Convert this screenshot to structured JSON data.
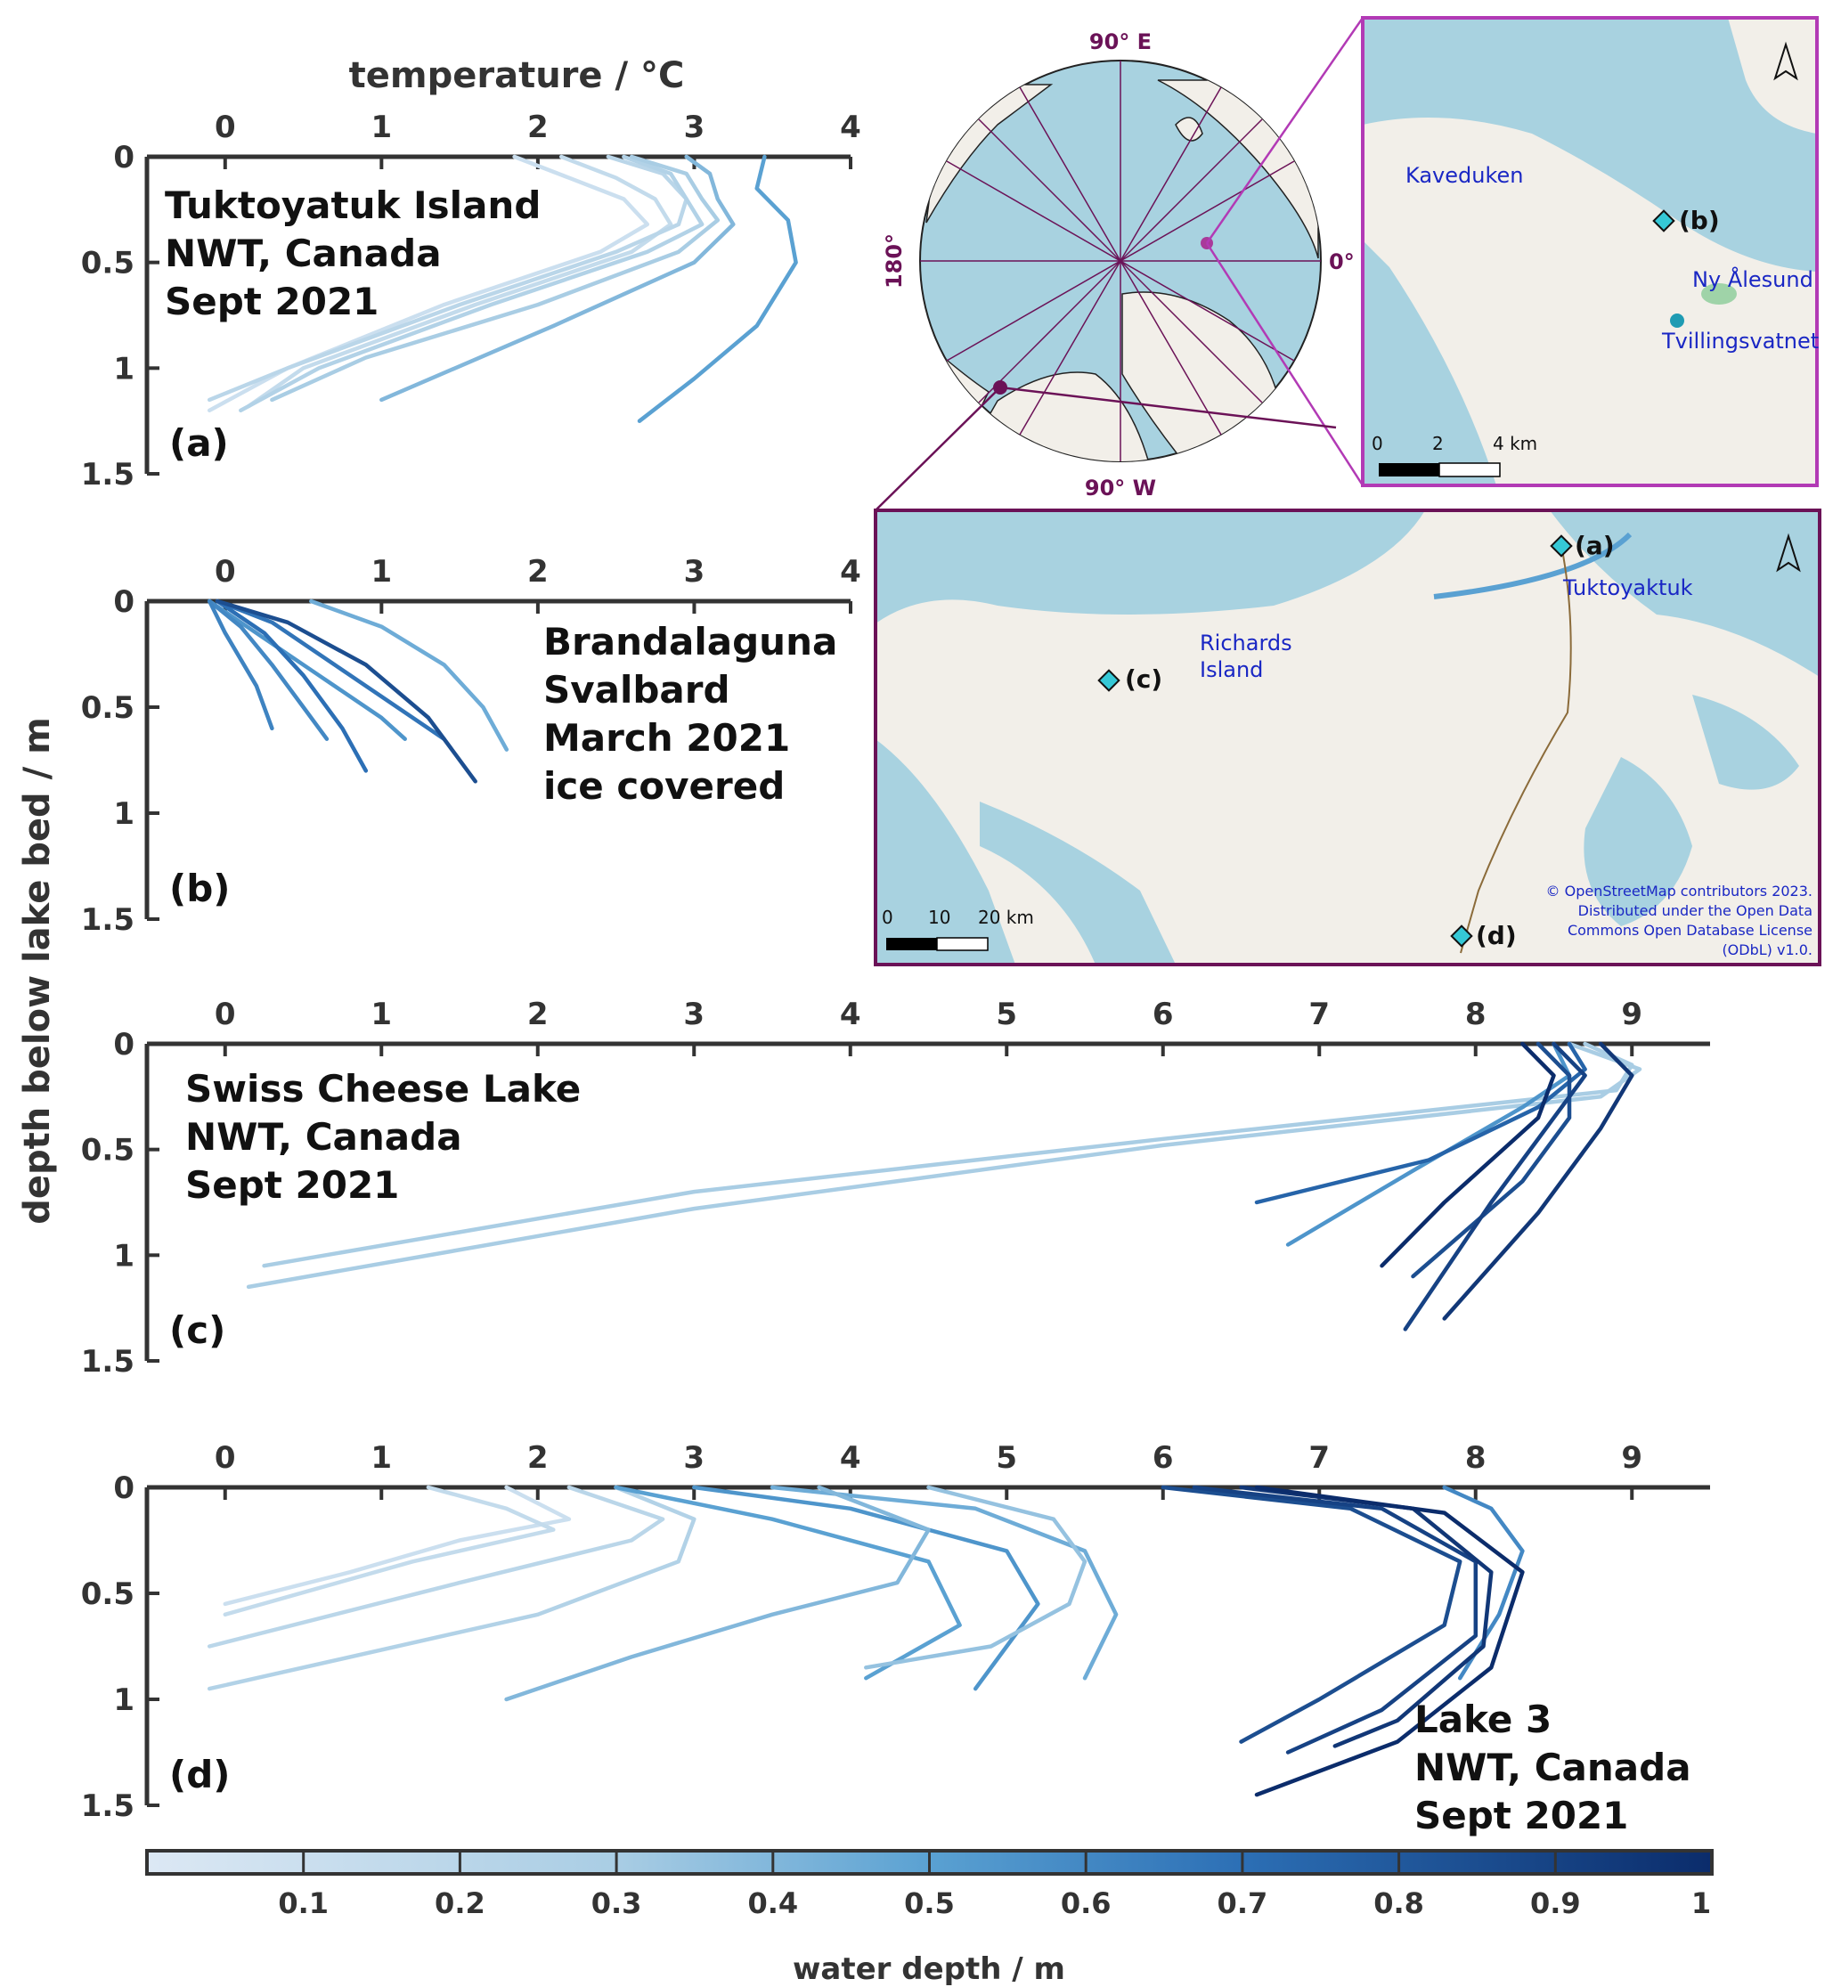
{
  "figure": {
    "y_axis_label": "depth below lake bed / m",
    "colorbar": {
      "label": "water depth / m",
      "ticks": [
        "0.1",
        "0.2",
        "0.3",
        "0.4",
        "0.5",
        "0.6",
        "0.7",
        "0.8",
        "0.9",
        "1"
      ],
      "color_low": "#dce8f4",
      "color_high": "#0b2c6b"
    }
  },
  "chart_data": [
    {
      "type": "line",
      "panel": "(a)",
      "xlabel": "temperature / °C",
      "x_ticks": [
        "0",
        "1",
        "2",
        "3",
        "4"
      ],
      "y_ticks": [
        "0",
        "0.5",
        "1",
        "1.5"
      ],
      "xlim": [
        -0.5,
        4.0
      ],
      "ylim": [
        0,
        1.5
      ],
      "annotation": [
        "Tuktoyatuk Island",
        "NWT, Canada",
        "Sept 2021"
      ],
      "series": [
        {
          "water_depth": 0.1,
          "x": [
            1.85,
            2.2,
            2.55,
            2.7,
            2.4,
            1.4,
            0.4,
            -0.1
          ],
          "y": [
            0,
            0.1,
            0.2,
            0.32,
            0.45,
            0.7,
            1.0,
            1.2
          ]
        },
        {
          "water_depth": 0.15,
          "x": [
            2.15,
            2.5,
            2.75,
            2.85,
            2.6,
            1.6,
            0.5,
            0.15
          ],
          "y": [
            0,
            0.1,
            0.2,
            0.32,
            0.45,
            0.7,
            1.0,
            1.18
          ]
        },
        {
          "water_depth": 0.2,
          "x": [
            2.45,
            2.8,
            2.95,
            2.9,
            2.5,
            1.5,
            0.4,
            -0.1
          ],
          "y": [
            0,
            0.08,
            0.2,
            0.32,
            0.45,
            0.7,
            1.0,
            1.15
          ]
        },
        {
          "water_depth": 0.25,
          "x": [
            2.55,
            2.85,
            2.95,
            3.05,
            2.7,
            1.7,
            0.6,
            0.1
          ],
          "y": [
            0,
            0.08,
            0.2,
            0.32,
            0.45,
            0.7,
            1.0,
            1.2
          ]
        },
        {
          "water_depth": 0.3,
          "x": [
            2.6,
            2.95,
            3.05,
            3.15,
            2.9,
            2.0,
            0.9,
            0.3
          ],
          "y": [
            0,
            0.08,
            0.2,
            0.3,
            0.45,
            0.7,
            0.95,
            1.15
          ]
        },
        {
          "water_depth": 0.4,
          "x": [
            2.95,
            3.1,
            3.15,
            3.25,
            3.0,
            2.1,
            1.0
          ],
          "y": [
            0,
            0.08,
            0.2,
            0.32,
            0.5,
            0.8,
            1.15
          ]
        },
        {
          "water_depth": 0.5,
          "x": [
            3.45,
            3.4,
            3.6,
            3.65,
            3.4,
            3.0,
            2.65
          ],
          "y": [
            0,
            0.15,
            0.3,
            0.5,
            0.8,
            1.05,
            1.25
          ]
        }
      ]
    },
    {
      "type": "line",
      "panel": "(b)",
      "x_ticks": [
        "0",
        "1",
        "2",
        "3",
        "4"
      ],
      "y_ticks": [
        "0",
        "0.5",
        "1",
        "1.5"
      ],
      "xlim": [
        -0.5,
        4.0
      ],
      "ylim": [
        0,
        1.5
      ],
      "annotation": [
        "Brandalaguna",
        "Svalbard",
        "March 2021",
        "ice covered"
      ],
      "series": [
        {
          "water_depth": 0.45,
          "x": [
            0.55,
            1.0,
            1.4,
            1.65,
            1.8
          ],
          "y": [
            0,
            0.12,
            0.3,
            0.5,
            0.7
          ]
        },
        {
          "water_depth": 0.55,
          "x": [
            -0.1,
            0.2,
            0.6,
            1.0,
            1.15
          ],
          "y": [
            0,
            0.15,
            0.35,
            0.55,
            0.65
          ]
        },
        {
          "water_depth": 0.6,
          "x": [
            -0.1,
            0.1,
            0.3,
            0.5,
            0.65
          ],
          "y": [
            0,
            0.12,
            0.3,
            0.5,
            0.65
          ]
        },
        {
          "water_depth": 0.62,
          "x": [
            -0.1,
            0.0,
            0.2,
            0.3
          ],
          "y": [
            0,
            0.15,
            0.4,
            0.6
          ]
        },
        {
          "water_depth": 0.68,
          "x": [
            -0.05,
            0.3,
            0.7,
            1.1,
            1.4
          ],
          "y": [
            0,
            0.1,
            0.3,
            0.5,
            0.65
          ]
        },
        {
          "water_depth": 0.7,
          "x": [
            -0.05,
            0.25,
            0.5,
            0.75,
            0.9
          ],
          "y": [
            0,
            0.15,
            0.35,
            0.6,
            0.8
          ]
        },
        {
          "water_depth": 0.85,
          "x": [
            -0.05,
            0.4,
            0.9,
            1.3,
            1.6
          ],
          "y": [
            0,
            0.1,
            0.3,
            0.55,
            0.85
          ]
        }
      ]
    },
    {
      "type": "line",
      "panel": "(c)",
      "x_ticks": [
        "0",
        "1",
        "2",
        "3",
        "4",
        "5",
        "6",
        "7",
        "8",
        "9"
      ],
      "y_ticks": [
        "0",
        "0.5",
        "1",
        "1.5"
      ],
      "xlim": [
        -0.5,
        9.5
      ],
      "ylim": [
        0,
        1.5
      ],
      "annotation": [
        "Swiss Cheese Lake",
        "NWT, Canada",
        "Sept 2021"
      ],
      "series": [
        {
          "water_depth": 0.3,
          "x": [
            8.7,
            9.0,
            8.9,
            6.0,
            3.0,
            0.25
          ],
          "y": [
            0,
            0.1,
            0.22,
            0.45,
            0.7,
            1.05
          ]
        },
        {
          "water_depth": 0.3,
          "x": [
            8.6,
            9.05,
            8.8,
            6.0,
            3.0,
            0.15
          ],
          "y": [
            0,
            0.12,
            0.25,
            0.48,
            0.78,
            1.15
          ]
        },
        {
          "water_depth": 0.55,
          "x": [
            8.5,
            8.6,
            8.3,
            7.6,
            6.8
          ],
          "y": [
            0,
            0.15,
            0.3,
            0.6,
            0.95
          ]
        },
        {
          "water_depth": 0.75,
          "x": [
            8.6,
            8.7,
            8.4,
            7.7,
            6.6
          ],
          "y": [
            0,
            0.12,
            0.3,
            0.55,
            0.75
          ]
        },
        {
          "water_depth": 0.85,
          "x": [
            8.4,
            8.6,
            8.6,
            8.3,
            7.6
          ],
          "y": [
            0,
            0.15,
            0.35,
            0.65,
            1.1
          ]
        },
        {
          "water_depth": 0.9,
          "x": [
            8.5,
            8.7,
            8.5,
            8.1,
            7.55
          ],
          "y": [
            0,
            0.15,
            0.35,
            0.75,
            1.35
          ]
        },
        {
          "water_depth": 0.95,
          "x": [
            8.8,
            9.0,
            8.8,
            8.4,
            7.8
          ],
          "y": [
            0,
            0.15,
            0.4,
            0.8,
            1.3
          ]
        },
        {
          "water_depth": 1.0,
          "x": [
            8.3,
            8.5,
            8.4,
            7.8,
            7.4
          ],
          "y": [
            0,
            0.15,
            0.35,
            0.75,
            1.05
          ]
        }
      ]
    },
    {
      "type": "line",
      "panel": "(d)",
      "x_ticks": [
        "0",
        "1",
        "2",
        "3",
        "4",
        "5",
        "6",
        "7",
        "8",
        "9"
      ],
      "y_ticks": [
        "0",
        "0.5",
        "1",
        "1.5"
      ],
      "xlim": [
        -0.5,
        9.5
      ],
      "ylim": [
        0,
        1.5
      ],
      "annotation": [
        "Lake 3",
        "NWT, Canada",
        "Sept 2021"
      ],
      "series": [
        {
          "water_depth": 0.1,
          "x": [
            1.8,
            2.2,
            1.5,
            0.8,
            0.0
          ],
          "y": [
            0,
            0.15,
            0.25,
            0.4,
            0.55
          ]
        },
        {
          "water_depth": 0.15,
          "x": [
            1.3,
            1.8,
            2.1,
            1.2,
            0.0
          ],
          "y": [
            0,
            0.1,
            0.2,
            0.35,
            0.6
          ]
        },
        {
          "water_depth": 0.2,
          "x": [
            2.2,
            2.8,
            2.6,
            1.5,
            -0.1
          ],
          "y": [
            0,
            0.15,
            0.25,
            0.45,
            0.75
          ]
        },
        {
          "water_depth": 0.25,
          "x": [
            2.5,
            3.0,
            2.9,
            2.0,
            -0.1
          ],
          "y": [
            0,
            0.15,
            0.35,
            0.6,
            0.95
          ]
        },
        {
          "water_depth": 0.5,
          "x": [
            2.5,
            3.5,
            4.5,
            4.7,
            4.1
          ],
          "y": [
            0,
            0.15,
            0.35,
            0.65,
            0.9
          ]
        },
        {
          "water_depth": 0.55,
          "x": [
            3.0,
            4.0,
            5.0,
            5.2,
            5.0,
            4.8
          ],
          "y": [
            0,
            0.1,
            0.3,
            0.55,
            0.75,
            0.95
          ]
        },
        {
          "water_depth": 0.45,
          "x": [
            3.5,
            4.8,
            5.5,
            5.7,
            5.5
          ],
          "y": [
            0,
            0.1,
            0.3,
            0.6,
            0.9
          ]
        },
        {
          "water_depth": 0.35,
          "x": [
            4.5,
            5.3,
            5.5,
            5.4,
            4.9,
            4.1
          ],
          "y": [
            0,
            0.15,
            0.35,
            0.55,
            0.75,
            0.85
          ]
        },
        {
          "water_depth": 0.4,
          "x": [
            3.8,
            4.5,
            4.3,
            3.5,
            2.6,
            1.8
          ],
          "y": [
            0,
            0.2,
            0.45,
            0.6,
            0.8,
            1.0
          ]
        },
        {
          "water_depth": 0.6,
          "x": [
            7.8,
            8.1,
            8.3,
            8.15,
            7.9
          ],
          "y": [
            0,
            0.1,
            0.3,
            0.6,
            0.9
          ]
        },
        {
          "water_depth": 0.85,
          "x": [
            6.0,
            7.2,
            7.9,
            7.8,
            7.0,
            6.5
          ],
          "y": [
            0,
            0.1,
            0.35,
            0.65,
            1.0,
            1.2
          ]
        },
        {
          "water_depth": 0.9,
          "x": [
            6.2,
            7.4,
            8.0,
            8.0,
            7.4,
            6.8
          ],
          "y": [
            0,
            0.1,
            0.35,
            0.7,
            1.05,
            1.25
          ]
        },
        {
          "water_depth": 0.95,
          "x": [
            6.5,
            7.6,
            8.1,
            8.05,
            7.5,
            7.1
          ],
          "y": [
            0,
            0.1,
            0.4,
            0.75,
            1.1,
            1.22
          ]
        },
        {
          "water_depth": 1.0,
          "x": [
            6.6,
            7.8,
            8.3,
            8.1,
            7.5,
            6.6
          ],
          "y": [
            0,
            0.12,
            0.4,
            0.85,
            1.2,
            1.45
          ]
        }
      ]
    }
  ],
  "maps": {
    "polar": {
      "labels": [
        "90° E",
        "180°",
        "0°",
        "90° W"
      ],
      "colors": {
        "ocean": "#a8d2e0",
        "land": "#f2efe9",
        "grid": "#6b1257",
        "marker": "#a93a9a"
      }
    },
    "svalbard": {
      "places": [
        "Kaveduken",
        "Ny Ålesund",
        "Tvillingsvatnet"
      ],
      "site": "(b)",
      "scale": [
        "0",
        "2",
        "4 km"
      ],
      "frame_color": "#b23ab5"
    },
    "mackenzie": {
      "places": [
        "Tuktoyaktuk",
        "Richards",
        "Island"
      ],
      "sites": [
        "(a)",
        "(c)",
        "(d)"
      ],
      "scale": [
        "0",
        "10",
        "20 km"
      ],
      "credit": [
        "© OpenStreetMap contributors 2023.",
        "Distributed under the Open Data",
        "Commons Open Database License",
        "(ODbL) v1.0."
      ],
      "frame_color": "#6b1257"
    }
  }
}
